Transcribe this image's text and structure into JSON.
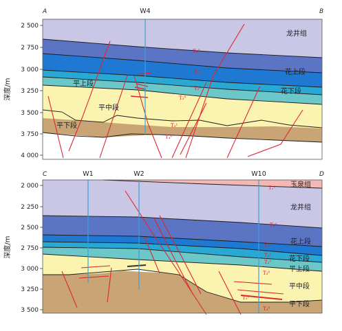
{
  "sections": {
    "top": {
      "left_label": "A",
      "right_label": "B",
      "wells": [
        {
          "name": "W4"
        }
      ],
      "axis_title": "深度/m",
      "depth_ticks": [
        "2 500",
        "2 750",
        "3 000",
        "3 250",
        "3 500",
        "3 750",
        "4 000"
      ],
      "units": {
        "longjing": "龙井组",
        "hua_upper": "花上段",
        "hua_lower": "花下段",
        "ping_upper": "平上段",
        "ping_middle": "平中段",
        "ping_lower": "平下段"
      },
      "reflectors": [
        "T₂⁰",
        "T₂¹",
        "T₂²",
        "T₃⁰",
        "T₃¹",
        "T₄⁰"
      ]
    },
    "bottom": {
      "left_label": "C",
      "right_label": "D",
      "wells": [
        {
          "name": "W1"
        },
        {
          "name": "W2"
        },
        {
          "name": "W10"
        }
      ],
      "axis_title": "深度/m",
      "depth_ticks": [
        "2 000",
        "2 250",
        "2 500",
        "2 750",
        "3 000",
        "3 250",
        "3 500"
      ],
      "units": {
        "yuquan": "玉泉组",
        "longjing": "龙井组",
        "hua_upper": "花上段",
        "hua_lower": "花下段",
        "ping_upper": "平上段",
        "ping_middle": "平中段",
        "ping_lower": "平下段"
      },
      "reflectors": [
        "T₁¹",
        "T₁⁰",
        "T₂⁰",
        "T₂¹",
        "T₂²",
        "T₃⁰",
        "T₃¹",
        "T₄⁰"
      ]
    }
  },
  "colors": {
    "yuquan": "#f4b7b4",
    "longjing": "#c9c6e6",
    "hua_upper_dark": "#5b74c4",
    "hua_upper": "#1f78d1",
    "hua_lower": "#2aa8d4",
    "ping_upper": "#6cc7c9",
    "ping_middle": "#fbf3b0",
    "ping_lower": "#c9a575",
    "fault": "#e0262e",
    "well": "#3aa0dc"
  }
}
